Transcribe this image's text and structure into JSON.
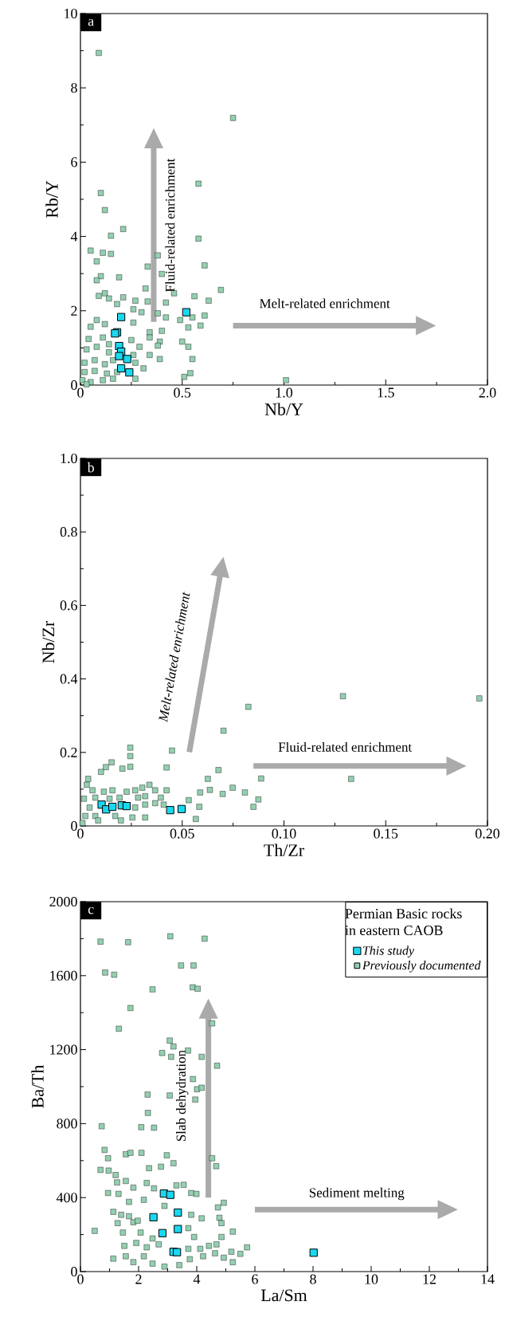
{
  "chart_data": [
    {
      "type": "scatter",
      "title": "a",
      "xlabel": "Nb/Y",
      "ylabel": "Rb/Y",
      "marker": "square",
      "legend": false,
      "xlim": [
        0,
        2
      ],
      "ylim": [
        0,
        10
      ],
      "xticks": [
        0,
        0.5,
        {
          "value": 1,
          "label": "1.0"
        },
        1.5,
        {
          "value": 2,
          "label": "2.0"
        }
      ],
      "yticks": [
        0,
        2,
        4,
        6,
        8,
        10
      ],
      "annotations": [
        "Fluid-related enrichment",
        "Melt-related enrichment"
      ],
      "series": [
        {
          "color": "#1ad8f0",
          "x": [
            0.2,
            0.18,
            0.17,
            0.19,
            0.2,
            0.19,
            0.23,
            0.2,
            0.24,
            0.52
          ],
          "values": [
            1.83,
            1.42,
            1.39,
            1.05,
            0.9,
            0.78,
            0.7,
            0.45,
            0.34,
            1.96
          ]
        },
        {
          "color": "#93cfb0",
          "x": [
            0.09,
            0.75,
            0.1,
            0.12,
            0.21,
            0.15,
            0.58,
            0.58,
            0.05,
            0.11,
            0.15,
            0.08,
            0.38,
            0.33,
            0.4,
            0.61,
            0.1,
            0.08,
            0.19,
            0.32,
            0.69,
            0.46,
            0.56,
            0.63,
            0.12,
            0.09,
            0.14,
            0.21,
            0.27,
            0.33,
            0.42,
            0.18,
            0.61,
            0.55,
            0.26,
            0.3,
            0.38,
            0.42,
            0.49,
            0.59,
            0.08,
            0.05,
            0.12,
            0.26,
            0.34,
            0.4,
            0.53,
            0.04,
            0.11,
            0.14,
            0.25,
            0.34,
            0.39,
            0.5,
            0.03,
            0.08,
            0.14,
            0.29,
            0.38,
            0.53,
            0.26,
            0.34,
            0.39,
            0.55,
            0.02,
            0.07,
            0.12,
            0.16,
            0.27,
            0.31,
            0.02,
            0.07,
            0.13,
            0.18,
            0.27,
            0.54,
            0.51,
            0.01,
            0.05,
            0.11,
            1.01,
            0.03,
            0.16
          ],
          "values": [
            8.94,
            7.19,
            5.17,
            4.71,
            4.2,
            4.02,
            5.42,
            3.94,
            3.62,
            3.56,
            3.53,
            3.33,
            3.49,
            3.19,
            2.99,
            3.22,
            2.93,
            2.82,
            2.9,
            2.6,
            2.56,
            2.47,
            2.39,
            2.27,
            2.47,
            2.4,
            2.33,
            2.36,
            2.27,
            2.25,
            2.22,
            2.18,
            1.87,
            1.82,
            2.04,
            1.96,
            1.93,
            1.82,
            1.75,
            1.6,
            1.75,
            1.57,
            1.64,
            1.68,
            1.42,
            1.46,
            1.55,
            1.24,
            1.28,
            1.1,
            1.21,
            1.28,
            1.17,
            1.17,
            0.96,
            1.03,
            0.88,
            1.03,
            1.06,
            1.03,
            0.81,
            0.81,
            0.7,
            0.7,
            0.6,
            0.67,
            0.56,
            0.67,
            0.6,
            0.45,
            0.35,
            0.38,
            0.31,
            0.35,
            0.17,
            0.32,
            0.22,
            0.13,
            0.08,
            0.13,
            0.13,
            0.02,
            0.17
          ]
        }
      ]
    },
    {
      "type": "scatter",
      "title": "b",
      "xlabel": "Th/Zr",
      "ylabel": "Nb/Zr",
      "marker": "square",
      "legend": false,
      "xlim": [
        0,
        0.2
      ],
      "ylim": [
        0,
        1
      ],
      "xticks": [
        0,
        0.05,
        {
          "value": 0.1,
          "label": "0.10"
        },
        0.15,
        {
          "value": 0.2,
          "label": "0.20"
        }
      ],
      "yticks": [
        0,
        0.2,
        0.4,
        0.6,
        0.8,
        {
          "value": 1,
          "label": "1.0"
        }
      ],
      "annotations": [
        "Melt-related enrichment",
        "Fluid-related enrichment"
      ],
      "series": [
        {
          "color": "#1ad8f0",
          "x": [
            0.0104,
            0.0126,
            0.0157,
            0.0203,
            0.0227,
            0.0441,
            0.0497
          ],
          "values": [
            0.058,
            0.045,
            0.052,
            0.056,
            0.054,
            0.043,
            0.046
          ]
        },
        {
          "color": "#93cfb0",
          "x": [
            0.0825,
            0.0703,
            0.045,
            0.0245,
            0.0245,
            0.0153,
            0.0125,
            0.0101,
            0.0206,
            0.0245,
            0.0423,
            0.0678,
            0.0626,
            0.0888,
            0.0636,
            0.0748,
            0.0808,
            0.0588,
            0.0699,
            0.0874,
            0.085,
            0.0584,
            0.0567,
            0.0532,
            0.0038,
            0.0031,
            0.0059,
            0.0115,
            0.0157,
            0.0227,
            0.0269,
            0.0304,
            0.0339,
            0.0367,
            0.0423,
            0.0017,
            0.0073,
            0.0143,
            0.0192,
            0.0283,
            0.0318,
            0.0395,
            0.0045,
            0.0269,
            0.0318,
            0.0367,
            0.0409,
            0.0024,
            0.0073,
            0.0171,
            0.0255,
            0.0318,
            0.001,
            0.0087,
            0.0199,
            0.129,
            0.133,
            0.196
          ],
          "values": [
            0.324,
            0.259,
            0.205,
            0.213,
            0.19,
            0.173,
            0.16,
            0.147,
            0.156,
            0.161,
            0.159,
            0.152,
            0.128,
            0.129,
            0.098,
            0.104,
            0.091,
            0.091,
            0.087,
            0.072,
            0.052,
            0.052,
            0.019,
            0.07,
            0.128,
            0.112,
            0.097,
            0.093,
            0.097,
            0.093,
            0.097,
            0.104,
            0.112,
            0.097,
            0.097,
            0.074,
            0.077,
            0.074,
            0.077,
            0.077,
            0.081,
            0.077,
            0.05,
            0.05,
            0.058,
            0.062,
            0.058,
            0.027,
            0.027,
            0.027,
            0.023,
            0.023,
            0.008,
            0.015,
            0.015,
            0.353,
            0.128,
            0.347
          ]
        }
      ]
    },
    {
      "type": "scatter",
      "title": "c",
      "xlabel": "La/Sm",
      "ylabel": "Ba/Th",
      "marker": "square",
      "legend": "top right",
      "legend_title": "Permian Basic rocks in eastern CAOB",
      "xlim": [
        0,
        14
      ],
      "ylim": [
        0,
        2000
      ],
      "xticks": [
        0,
        2,
        4,
        6,
        8,
        10,
        12,
        14
      ],
      "yticks": [
        0,
        400,
        800,
        1200,
        1600,
        2000
      ],
      "annotations": [
        "Slab dehydration",
        "Sediment melting"
      ],
      "series": [
        {
          "name": "This study",
          "color": "#1ad8f0",
          "x": [
            2.87,
            3.09,
            2.51,
            3.35,
            2.82,
            3.35,
            3.2,
            3.32,
            8.02
          ],
          "values": [
            422,
            415,
            294,
            319,
            208,
            230,
            107,
            105,
            102
          ]
        },
        {
          "name": "Previously documented",
          "color": "#93cfb0",
          "x": [
            0.69,
            1.64,
            3.09,
            4.27,
            0.85,
            1.16,
            3.46,
            3.89,
            2.48,
            3.86,
            4.03,
            1.72,
            1.32,
            4.53,
            3.07,
            3.2,
            2.81,
            3.12,
            3.7,
            4.17,
            4.7,
            3.87,
            4.01,
            4.17,
            2.31,
            3.07,
            3.95,
            2.32,
            0.73,
            2.09,
            2.53,
            0.83,
            0.95,
            1.56,
            1.72,
            2.1,
            2.97,
            3.2,
            2.36,
            2.77,
            4.53,
            4.67,
            0.69,
            0.97,
            1.21,
            1.26,
            1.56,
            1.82,
            2.28,
            2.53,
            3.3,
            3.55,
            0.95,
            1.31,
            1.67,
            2.18,
            3.81,
            3.99,
            4.73,
            4.93,
            0.49,
            1.13,
            1.4,
            1.67,
            1.28,
            1.82,
            1.97,
            2.89,
            3.81,
            4.17,
            4.78,
            4.85,
            5.24,
            3.71,
            1.46,
            2.07,
            2.48,
            3.91,
            4.85,
            1.51,
            1.92,
            2.28,
            2.69,
            3.71,
            4.12,
            4.42,
            4.68,
            5.73,
            1.13,
            1.56,
            1.82,
            2.18,
            2.48,
            2.89,
            3.4,
            3.76,
            4.22,
            4.63,
            5.19,
            5.5,
            5.24,
            4.93
          ],
          "values": [
            1784,
            1781,
            1813,
            1800,
            1617,
            1605,
            1655,
            1655,
            1526,
            1537,
            1529,
            1425,
            1313,
            1342,
            1249,
            1217,
            1182,
            1161,
            1195,
            1161,
            1113,
            1041,
            986,
            994,
            957,
            952,
            930,
            858,
            786,
            781,
            778,
            658,
            613,
            634,
            642,
            642,
            629,
            586,
            559,
            567,
            613,
            570,
            550,
            546,
            522,
            482,
            490,
            454,
            479,
            450,
            466,
            469,
            425,
            420,
            377,
            388,
            425,
            420,
            347,
            372,
            220,
            323,
            307,
            299,
            262,
            267,
            275,
            355,
            307,
            288,
            291,
            262,
            216,
            235,
            211,
            211,
            179,
            187,
            187,
            139,
            155,
            131,
            147,
            123,
            123,
            139,
            147,
            131,
            70,
            83,
            51,
            83,
            43,
            27,
            35,
            67,
            83,
            99,
            107,
            96,
            51,
            75
          ]
        }
      ]
    }
  ]
}
